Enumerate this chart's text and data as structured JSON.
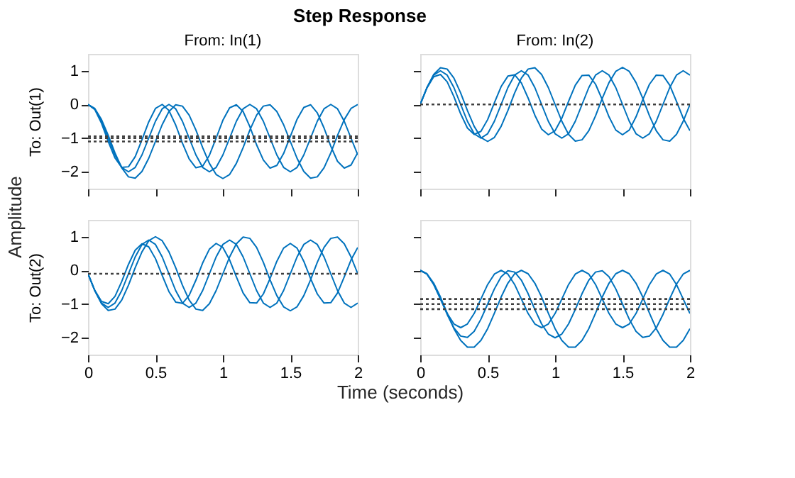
{
  "chart_data": [
    {
      "type": "line",
      "title": "From: In(1)",
      "ylabel": "To: Out(1)",
      "annotations": [
        "Step Response",
        "Amplitude",
        "Time (seconds)"
      ],
      "tick_labels": "y",
      "x": [
        0,
        0.05,
        0.1,
        0.15,
        0.2,
        0.25,
        0.3,
        0.35,
        0.4,
        0.45,
        0.5,
        0.55,
        0.6,
        0.65,
        0.7,
        0.75,
        0.8,
        0.85,
        0.9,
        0.95,
        1,
        1.05,
        1.1,
        1.15,
        1.2,
        1.25,
        1.3,
        1.35,
        1.4,
        1.45,
        1.5,
        1.55,
        1.6,
        1.65,
        1.7,
        1.75,
        1.8,
        1.85,
        1.9,
        1.95,
        2
      ],
      "xlim": [
        0,
        2
      ],
      "xticks": [
        0,
        0.5,
        1,
        1.5,
        2
      ],
      "ylim": [
        -2.5,
        1.5
      ],
      "yticks": [
        -2,
        -1,
        0,
        1
      ],
      "series": [
        {
          "color": "#0072bd",
          "values": [
            0,
            -0.13,
            -0.5,
            -1,
            -1.5,
            -1.87,
            -2,
            -1.87,
            -1.5,
            -1,
            -0.5,
            -0.13,
            0,
            -0.13,
            -0.5,
            -1,
            -1.5,
            -1.87,
            -2,
            -1.87,
            -1.5,
            -1,
            -0.5,
            -0.13,
            0,
            -0.13,
            -0.5,
            -1,
            -1.5,
            -1.87,
            -2,
            -1.87,
            -1.5,
            -1,
            -0.5,
            -0.13,
            0,
            -0.13,
            -0.5,
            -1,
            -1.5
          ]
        },
        {
          "color": "#0072bd",
          "values": [
            0,
            -0.12,
            -0.45,
            -0.92,
            -1.44,
            -1.88,
            -2.15,
            -2.19,
            -1.99,
            -1.6,
            -1.1,
            -0.6,
            -0.21,
            -0.01,
            -0.05,
            -0.32,
            -0.76,
            -1.28,
            -1.75,
            -2.08,
            -2.2,
            -2.08,
            -1.75,
            -1.28,
            -0.76,
            -0.32,
            -0.05,
            -0.01,
            -0.21,
            -0.6,
            -1.1,
            -1.6,
            -1.99,
            -2.19,
            -2.15,
            -1.88,
            -1.44,
            -0.92,
            -0.45,
            -0.12,
            0
          ]
        },
        {
          "color": "#0072bd",
          "values": [
            0,
            -0.15,
            -0.56,
            -1.1,
            -1.59,
            -1.87,
            -1.85,
            -1.55,
            -1.05,
            -0.52,
            -0.12,
            0,
            -0.18,
            -0.61,
            -1.15,
            -1.62,
            -1.88,
            -1.83,
            -1.51,
            -1,
            -0.47,
            -0.1,
            -0.01,
            -0.21,
            -0.66,
            -1.2,
            -1.65,
            -1.89,
            -1.81,
            -1.46,
            -0.95,
            -0.44,
            -0.09,
            -0.01,
            -0.25,
            -0.7,
            -1.24,
            -1.69,
            -1.89,
            -1.8,
            -1.43
          ]
        }
      ],
      "ref_lines": [
        {
          "axis": "y",
          "value": -0.95,
          "color": "#404040",
          "line_style": "dotted"
        },
        {
          "axis": "y",
          "value": -1,
          "color": "#404040",
          "line_style": "dotted"
        },
        {
          "axis": "y",
          "value": -1.1,
          "color": "#404040",
          "line_style": "dotted"
        }
      ]
    },
    {
      "type": "line",
      "title": "From: In(2)",
      "tick_labels": false,
      "x": [
        0,
        0.05,
        0.1,
        0.15,
        0.2,
        0.25,
        0.3,
        0.35,
        0.4,
        0.45,
        0.5,
        0.55,
        0.6,
        0.65,
        0.7,
        0.75,
        0.8,
        0.85,
        0.9,
        0.95,
        1,
        1.05,
        1.1,
        1.15,
        1.2,
        1.25,
        1.3,
        1.35,
        1.4,
        1.45,
        1.5,
        1.55,
        1.6,
        1.65,
        1.7,
        1.75,
        1.8,
        1.85,
        1.9,
        1.95,
        2
      ],
      "xlim": [
        0,
        2
      ],
      "xticks": [
        0,
        0.5,
        1,
        1.5,
        2
      ],
      "ylim": [
        -2.5,
        1.5
      ],
      "yticks": [
        -2,
        -1,
        0,
        1
      ],
      "series": [
        {
          "color": "#0072bd",
          "values": [
            0,
            0.5,
            0.87,
            1,
            0.87,
            0.5,
            0,
            -0.5,
            -0.87,
            -1,
            -0.87,
            -0.5,
            0,
            0.5,
            0.87,
            1,
            0.87,
            0.5,
            0,
            -0.5,
            -0.87,
            -1,
            -0.87,
            -0.5,
            0,
            0.5,
            0.87,
            1,
            0.87,
            0.5,
            0,
            -0.5,
            -0.87,
            -1,
            -0.87,
            -0.5,
            0,
            0.5,
            0.87,
            1,
            0.87
          ]
        },
        {
          "color": "#0072bd",
          "values": [
            0,
            0.5,
            0.89,
            1.09,
            1.05,
            0.78,
            0.34,
            -0.18,
            -0.65,
            -0.98,
            -1.1,
            -0.98,
            -0.65,
            -0.18,
            0.34,
            0.78,
            1.05,
            1.09,
            0.89,
            0.5,
            0,
            -0.5,
            -0.89,
            -1.09,
            -1.05,
            -0.78,
            -0.34,
            0.18,
            0.65,
            0.98,
            1.1,
            0.98,
            0.65,
            0.18,
            -0.34,
            -0.78,
            -1.05,
            -1.09,
            -0.89,
            -0.5,
            0
          ]
        },
        {
          "color": "#0072bd",
          "values": [
            0,
            0.49,
            0.82,
            0.89,
            0.67,
            0.23,
            -0.28,
            -0.7,
            -0.89,
            -0.8,
            -0.45,
            0.05,
            0.53,
            0.84,
            0.88,
            0.64,
            0.19,
            -0.32,
            -0.73,
            -0.9,
            -0.78,
            -0.41,
            0.09,
            0.57,
            0.86,
            0.87,
            0.6,
            0.14,
            -0.37,
            -0.76,
            -0.9,
            -0.76,
            -0.37,
            0.14,
            0.6,
            0.87,
            0.86,
            0.57,
            0.09,
            -0.41,
            -0.78
          ]
        }
      ],
      "ref_lines": [
        {
          "axis": "y",
          "value": 0,
          "color": "#404040",
          "line_style": "dotted"
        }
      ]
    },
    {
      "type": "line",
      "ylabel": "To: Out(2)",
      "x": [
        0,
        0.05,
        0.1,
        0.15,
        0.2,
        0.25,
        0.3,
        0.35,
        0.4,
        0.45,
        0.5,
        0.55,
        0.6,
        0.65,
        0.7,
        0.75,
        0.8,
        0.85,
        0.9,
        0.95,
        1,
        1.05,
        1.1,
        1.15,
        1.2,
        1.25,
        1.3,
        1.35,
        1.4,
        1.45,
        1.5,
        1.55,
        1.6,
        1.65,
        1.7,
        1.75,
        1.8,
        1.85,
        1.9,
        1.95,
        2
      ],
      "xlim": [
        0,
        2
      ],
      "xticks": [
        0,
        0.5,
        1,
        1.5,
        2
      ],
      "ylim": [
        -2.5,
        1.5
      ],
      "yticks": [
        -2,
        -1,
        0,
        1
      ],
      "series": [
        {
          "color": "#0072bd",
          "values": [
            -0.1,
            -0.6,
            -0.97,
            -1.1,
            -0.97,
            -0.6,
            -0.1,
            0.4,
            0.77,
            0.9,
            0.77,
            0.4,
            -0.1,
            -0.6,
            -0.97,
            -1.1,
            -0.97,
            -0.6,
            -0.1,
            0.4,
            0.77,
            0.9,
            0.77,
            0.4,
            -0.1,
            -0.6,
            -0.97,
            -1.1,
            -0.97,
            -0.6,
            -0.1,
            0.4,
            0.77,
            0.9,
            0.77,
            0.4,
            -0.1,
            -0.6,
            -0.97,
            -1.1,
            -0.97
          ]
        },
        {
          "color": "#0072bd",
          "values": [
            -0.1,
            -0.6,
            -0.99,
            -1.19,
            -1.15,
            -0.88,
            -0.44,
            0.08,
            0.55,
            0.88,
            1,
            0.88,
            0.55,
            0.08,
            -0.44,
            -0.88,
            -1.15,
            -1.19,
            -0.99,
            -0.6,
            -0.1,
            0.4,
            0.79,
            0.99,
            0.95,
            0.68,
            0.24,
            -0.28,
            -0.75,
            -1.08,
            -1.2,
            -1.08,
            -0.75,
            -0.28,
            0.24,
            0.68,
            0.95,
            0.99,
            0.79,
            0.4,
            -0.1
          ]
        },
        {
          "color": "#0072bd",
          "values": [
            -0.1,
            -0.59,
            -0.92,
            -0.99,
            -0.77,
            -0.33,
            0.18,
            0.6,
            0.79,
            0.7,
            0.35,
            -0.15,
            -0.63,
            -0.94,
            -0.98,
            -0.74,
            -0.29,
            0.22,
            0.63,
            0.8,
            0.68,
            0.31,
            -0.19,
            -0.67,
            -0.96,
            -0.97,
            -0.7,
            -0.24,
            0.27,
            0.66,
            0.8,
            0.66,
            0.27,
            -0.24,
            -0.7,
            -0.97,
            -0.96,
            -0.67,
            -0.19,
            0.31,
            0.68
          ]
        }
      ],
      "ref_lines": [
        {
          "axis": "y",
          "value": -0.1,
          "color": "#404040",
          "line_style": "dotted"
        }
      ]
    },
    {
      "type": "line",
      "tick_labels": "x",
      "x": [
        0,
        0.05,
        0.1,
        0.15,
        0.2,
        0.25,
        0.3,
        0.35,
        0.4,
        0.45,
        0.5,
        0.55,
        0.6,
        0.65,
        0.7,
        0.75,
        0.8,
        0.85,
        0.9,
        0.95,
        1,
        1.05,
        1.1,
        1.15,
        1.2,
        1.25,
        1.3,
        1.35,
        1.4,
        1.45,
        1.5,
        1.55,
        1.6,
        1.65,
        1.7,
        1.75,
        1.8,
        1.85,
        1.9,
        1.95,
        2
      ],
      "xlim": [
        0,
        2
      ],
      "xticks": [
        0,
        0.5,
        1,
        1.5,
        2
      ],
      "ylim": [
        -2.5,
        1.5
      ],
      "yticks": [
        -2,
        -1,
        0,
        1
      ],
      "series": [
        {
          "color": "#0072bd",
          "values": [
            0,
            -0.11,
            -0.41,
            -0.84,
            -1.31,
            -1.71,
            -1.95,
            -1.99,
            -1.81,
            -1.45,
            -1,
            -0.55,
            -0.19,
            -0.01,
            -0.05,
            -0.29,
            -0.69,
            -1.16,
            -1.59,
            -1.89,
            -2,
            -1.89,
            -1.59,
            -1.16,
            -0.69,
            -0.29,
            -0.05,
            -0.01,
            -0.19,
            -0.55,
            -1,
            -1.45,
            -1.81,
            -1.99,
            -1.95,
            -1.71,
            -1.31,
            -0.84,
            -0.41,
            -0.11,
            0
          ]
        },
        {
          "color": "#0072bd",
          "values": [
            0,
            -0.11,
            -0.42,
            -0.85,
            -1.28,
            -1.59,
            -1.7,
            -1.59,
            -1.28,
            -0.85,
            -0.42,
            -0.11,
            0,
            -0.11,
            -0.42,
            -0.85,
            -1.28,
            -1.59,
            -1.7,
            -1.59,
            -1.28,
            -0.85,
            -0.42,
            -0.11,
            0,
            -0.11,
            -0.42,
            -0.85,
            -1.28,
            -1.59,
            -1.7,
            -1.59,
            -1.28,
            -0.85,
            -0.42,
            -0.11,
            0,
            -0.11,
            -0.42,
            -0.85,
            -1.28
          ]
        },
        {
          "color": "#0072bd",
          "values": [
            0,
            -0.1,
            -0.38,
            -0.79,
            -1.27,
            -1.73,
            -2.08,
            -2.28,
            -2.28,
            -2.08,
            -1.73,
            -1.27,
            -0.79,
            -0.38,
            -0.1,
            0,
            -0.1,
            -0.38,
            -0.79,
            -1.27,
            -1.73,
            -2.08,
            -2.28,
            -2.28,
            -2.08,
            -1.73,
            -1.27,
            -0.79,
            -0.38,
            -0.1,
            0,
            -0.1,
            -0.38,
            -0.79,
            -1.27,
            -1.73,
            -2.08,
            -2.28,
            -2.28,
            -2.08,
            -1.73
          ]
        }
      ],
      "ref_lines": [
        {
          "axis": "y",
          "value": -0.85,
          "color": "#404040",
          "line_style": "dotted"
        },
        {
          "axis": "y",
          "value": -1,
          "color": "#404040",
          "line_style": "dotted"
        },
        {
          "axis": "y",
          "value": -1.15,
          "color": "#404040",
          "line_style": "dotted"
        }
      ]
    }
  ]
}
